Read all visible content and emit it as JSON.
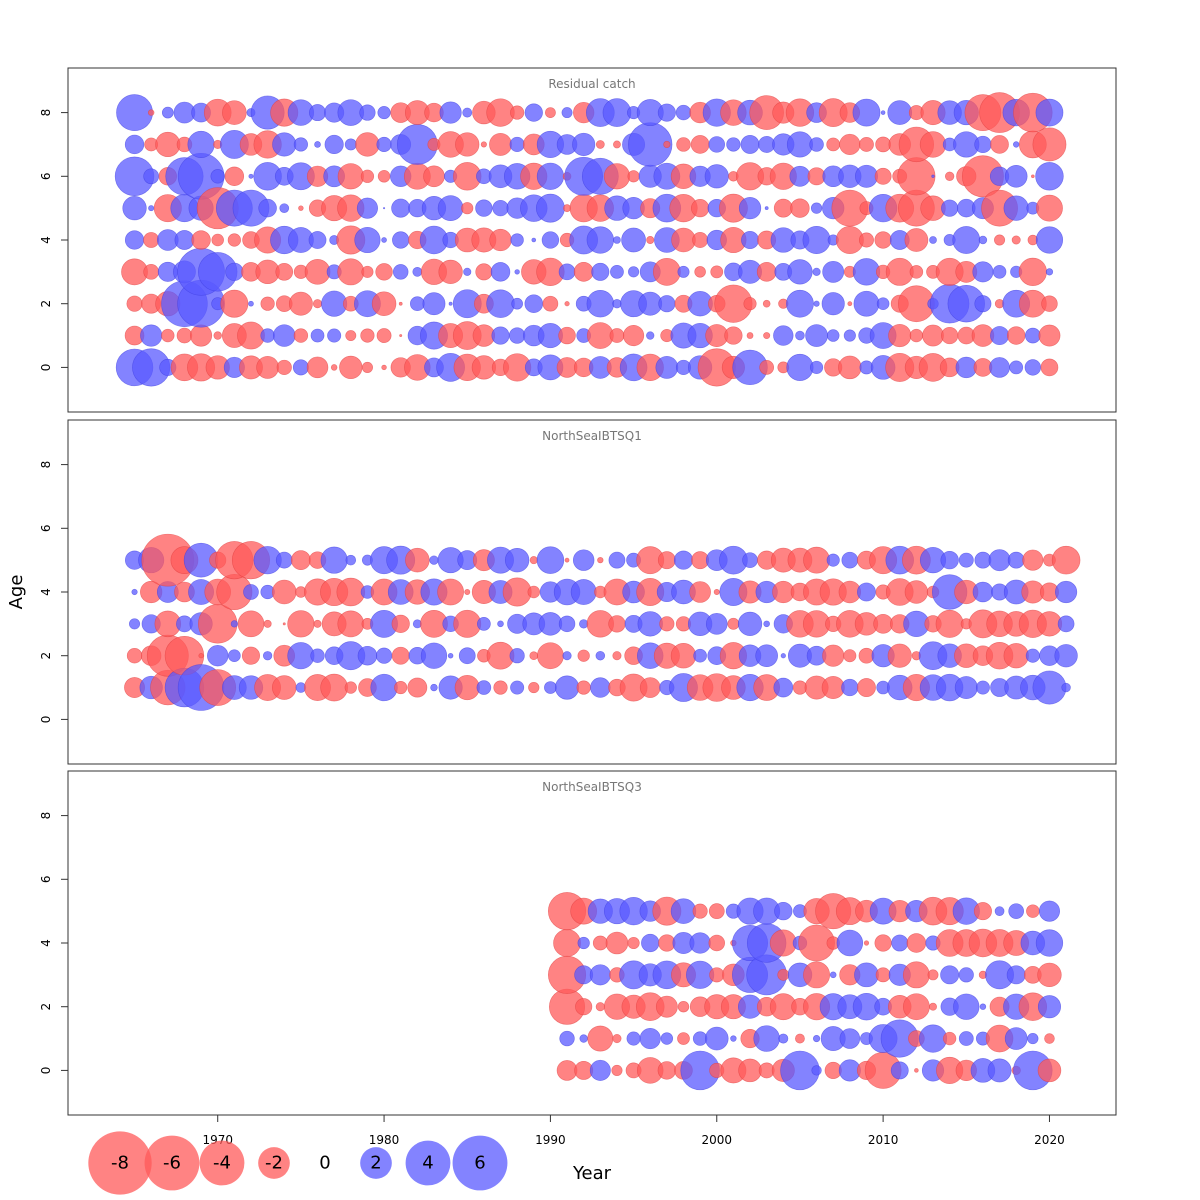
{
  "chart_data": {
    "type": "scatter",
    "subtype": "bubble",
    "xlabel": "Year",
    "ylabel": "Age",
    "xlim": [
      1961,
      2024
    ],
    "ylim": [
      -1.4,
      9.4
    ],
    "xticks": [
      1970,
      1980,
      1990,
      2000,
      2010,
      2020
    ],
    "yticks": [
      0,
      2,
      4,
      6,
      8
    ],
    "colors": {
      "negative": "#ff5a5a",
      "positive": "#5a5aff"
    },
    "panels": [
      {
        "title": "Residual catch",
        "years": [
          1965,
          2020
        ],
        "ages": [
          0,
          1,
          2,
          3,
          4,
          5,
          6,
          7,
          8
        ],
        "seed": 11,
        "highlights": [
          {
            "year": 1965,
            "age": 8,
            "value": 2.6
          },
          {
            "year": 1973,
            "age": 8,
            "value": 2.2
          },
          {
            "year": 2003,
            "age": 8,
            "value": -2.3
          },
          {
            "year": 2016,
            "age": 8,
            "value": -2.6
          },
          {
            "year": 2017,
            "age": 8,
            "value": -3.2
          },
          {
            "year": 2019,
            "age": 8,
            "value": -3.0
          },
          {
            "year": 1982,
            "age": 7,
            "value": 3.2
          },
          {
            "year": 1996,
            "age": 7,
            "value": 3.8
          },
          {
            "year": 2012,
            "age": 7,
            "value": -2.4
          },
          {
            "year": 2020,
            "age": 7,
            "value": -2.2
          },
          {
            "year": 1965,
            "age": 6,
            "value": 3.0
          },
          {
            "year": 1968,
            "age": 6,
            "value": 2.8
          },
          {
            "year": 1969,
            "age": 6,
            "value": 4.2
          },
          {
            "year": 1992,
            "age": 6,
            "value": 2.9
          },
          {
            "year": 1993,
            "age": 6,
            "value": 2.6
          },
          {
            "year": 2012,
            "age": 6,
            "value": -2.8
          },
          {
            "year": 2016,
            "age": 6,
            "value": -3.4
          },
          {
            "year": 1970,
            "age": 5,
            "value": -3.4
          },
          {
            "year": 1971,
            "age": 5,
            "value": 2.6
          },
          {
            "year": 1972,
            "age": 5,
            "value": 2.6
          },
          {
            "year": 2012,
            "age": 5,
            "value": -2.6
          },
          {
            "year": 2017,
            "age": 5,
            "value": -2.6
          },
          {
            "year": 2008,
            "age": 5,
            "value": -2.6
          },
          {
            "year": 1969,
            "age": 3,
            "value": 4.4
          },
          {
            "year": 1970,
            "age": 3,
            "value": 3.0
          },
          {
            "year": 1968,
            "age": 2,
            "value": 4.2
          },
          {
            "year": 1969,
            "age": 2,
            "value": 4.4
          },
          {
            "year": 2001,
            "age": 2,
            "value": -2.8
          },
          {
            "year": 2012,
            "age": 2,
            "value": -2.6
          },
          {
            "year": 2014,
            "age": 2,
            "value": 3.0
          },
          {
            "year": 2015,
            "age": 2,
            "value": 2.7
          },
          {
            "year": 1965,
            "age": 0,
            "value": 2.7
          },
          {
            "year": 1966,
            "age": 0,
            "value": 2.8
          },
          {
            "year": 2000,
            "age": 0,
            "value": -2.8
          },
          {
            "year": 2002,
            "age": 0,
            "value": 2.4
          }
        ]
      },
      {
        "title": "NorthSeaIBTSQ1",
        "years": [
          1965,
          2021
        ],
        "ages": [
          1,
          2,
          3,
          4,
          5
        ],
        "seed": 23,
        "highlights": [
          {
            "year": 1967,
            "age": 5,
            "value": -5.4
          },
          {
            "year": 1971,
            "age": 5,
            "value": -2.8
          },
          {
            "year": 1972,
            "age": 5,
            "value": -2.8
          },
          {
            "year": 1969,
            "age": 5,
            "value": 2.3
          },
          {
            "year": 1971,
            "age": 4,
            "value": -2.5
          },
          {
            "year": 1970,
            "age": 3,
            "value": -3.0
          },
          {
            "year": 1967,
            "age": 2,
            "value": -3.4
          },
          {
            "year": 1968,
            "age": 2,
            "value": -3.0
          },
          {
            "year": 1968,
            "age": 1,
            "value": 3.0
          },
          {
            "year": 1969,
            "age": 1,
            "value": 4.2
          },
          {
            "year": 1970,
            "age": 1,
            "value": -2.6
          },
          {
            "year": 1967,
            "age": 1,
            "value": -2.4
          },
          {
            "year": 2014,
            "age": 4,
            "value": 2.4
          },
          {
            "year": 2020,
            "age": 1,
            "value": 2.2
          }
        ]
      },
      {
        "title": "NorthSeaIBTSQ3",
        "years": [
          1991,
          2020
        ],
        "ages": [
          0,
          1,
          2,
          3,
          4,
          5
        ],
        "seed": 37,
        "highlights": [
          {
            "year": 1991,
            "age": 5,
            "value": -2.8
          },
          {
            "year": 2007,
            "age": 5,
            "value": -2.5
          },
          {
            "year": 2003,
            "age": 4,
            "value": 3.0
          },
          {
            "year": 2002,
            "age": 4,
            "value": 2.5
          },
          {
            "year": 2006,
            "age": 4,
            "value": -2.6
          },
          {
            "year": 2003,
            "age": 3,
            "value": 3.2
          },
          {
            "year": 2002,
            "age": 3,
            "value": 2.5
          },
          {
            "year": 1991,
            "age": 3,
            "value": -2.8
          },
          {
            "year": 1991,
            "age": 2,
            "value": -2.5
          },
          {
            "year": 2011,
            "age": 1,
            "value": 2.8
          },
          {
            "year": 1999,
            "age": 0,
            "value": 3.0
          },
          {
            "year": 2005,
            "age": 0,
            "value": 3.0
          },
          {
            "year": 2019,
            "age": 0,
            "value": 3.0
          },
          {
            "year": 2010,
            "age": 0,
            "value": -2.6
          }
        ]
      }
    ],
    "legend": {
      "placement": "bottom-left",
      "values": [
        -8,
        -6,
        -4,
        -2,
        0,
        2,
        4,
        6
      ],
      "labels": [
        "-8",
        "-6",
        "-4",
        "-2",
        "0",
        "2",
        "4",
        "6"
      ]
    }
  }
}
